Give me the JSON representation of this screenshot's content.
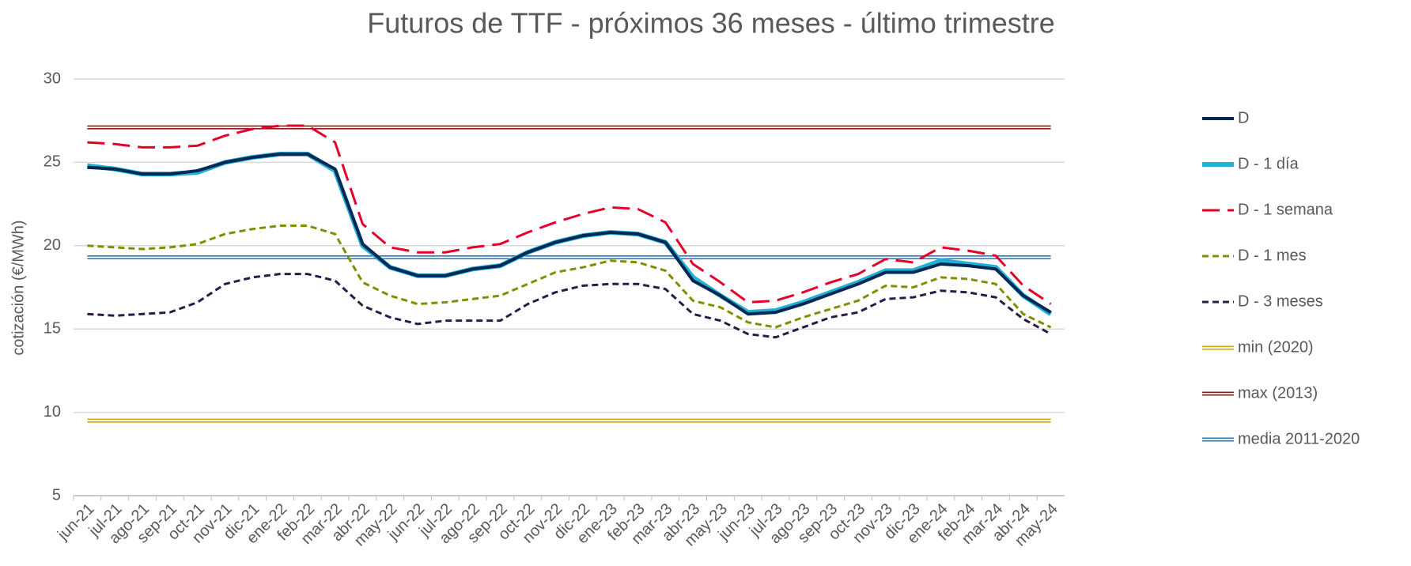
{
  "chart_data": {
    "type": "line",
    "title": "Futuros de TTF - próximos 36 meses - último trimestre",
    "y_label": "cotización (€/MWh)",
    "categories": [
      "jun-21",
      "jul-21",
      "ago-21",
      "sep-21",
      "oct-21",
      "nov-21",
      "dic-21",
      "ene-22",
      "feb-22",
      "mar-22",
      "abr-22",
      "may-22",
      "jun-22",
      "jul-22",
      "ago-22",
      "sep-22",
      "oct-22",
      "nov-22",
      "dic-22",
      "ene-23",
      "feb-23",
      "mar-23",
      "abr-23",
      "may-23",
      "jun-23",
      "jul-23",
      "ago-23",
      "sep-23",
      "oct-23",
      "nov-23",
      "dic-23",
      "ene-24",
      "feb-24",
      "mar-24",
      "abr-24",
      "may-24"
    ],
    "ylim": [
      5,
      30
    ],
    "yticks": [
      5,
      10,
      15,
      20,
      25,
      30
    ],
    "grid": true,
    "legend": "right",
    "series": [
      {
        "name": "min (2020)",
        "color": "#c9a800",
        "style": "double",
        "values": [
          9.5,
          9.5,
          9.5,
          9.5,
          9.5,
          9.5,
          9.5,
          9.5,
          9.5,
          9.5,
          9.5,
          9.5,
          9.5,
          9.5,
          9.5,
          9.5,
          9.5,
          9.5,
          9.5,
          9.5,
          9.5,
          9.5,
          9.5,
          9.5,
          9.5,
          9.5,
          9.5,
          9.5,
          9.5,
          9.5,
          9.5,
          9.5,
          9.5,
          9.5,
          9.5,
          9.5
        ]
      },
      {
        "name": "max (2013)",
        "color": "#8b1a1a",
        "style": "double",
        "values": [
          27.1,
          27.1,
          27.1,
          27.1,
          27.1,
          27.1,
          27.1,
          27.1,
          27.1,
          27.1,
          27.1,
          27.1,
          27.1,
          27.1,
          27.1,
          27.1,
          27.1,
          27.1,
          27.1,
          27.1,
          27.1,
          27.1,
          27.1,
          27.1,
          27.1,
          27.1,
          27.1,
          27.1,
          27.1,
          27.1,
          27.1,
          27.1,
          27.1,
          27.1,
          27.1,
          27.1
        ]
      },
      {
        "name": "media 2011-2020",
        "color": "#2e75b6",
        "style": "double",
        "values": [
          19.3,
          19.3,
          19.3,
          19.3,
          19.3,
          19.3,
          19.3,
          19.3,
          19.3,
          19.3,
          19.3,
          19.3,
          19.3,
          19.3,
          19.3,
          19.3,
          19.3,
          19.3,
          19.3,
          19.3,
          19.3,
          19.3,
          19.3,
          19.3,
          19.3,
          19.3,
          19.3,
          19.3,
          19.3,
          19.3,
          19.3,
          19.3,
          19.3,
          19.3,
          19.3,
          19.3
        ]
      },
      {
        "name": "D - 3 meses",
        "color": "#2e1a47",
        "style": "dot",
        "values": [
          15.9,
          15.8,
          15.9,
          16.0,
          16.6,
          17.7,
          18.1,
          18.3,
          18.3,
          17.9,
          16.4,
          15.7,
          15.3,
          15.5,
          15.5,
          15.5,
          16.5,
          17.2,
          17.6,
          17.7,
          17.7,
          17.4,
          15.9,
          15.5,
          14.7,
          14.5,
          15.1,
          15.7,
          16.0,
          16.8,
          16.9,
          17.3,
          17.2,
          16.9,
          15.6,
          14.7
        ]
      },
      {
        "name": "D - 1 mes",
        "color": "#7f8f00",
        "style": "dot",
        "values": [
          20.0,
          19.9,
          19.8,
          19.9,
          20.1,
          20.7,
          21.0,
          21.2,
          21.2,
          20.7,
          17.8,
          17.0,
          16.5,
          16.6,
          16.8,
          17.0,
          17.7,
          18.4,
          18.7,
          19.1,
          19.0,
          18.5,
          16.7,
          16.3,
          15.4,
          15.1,
          15.7,
          16.2,
          16.7,
          17.6,
          17.5,
          18.1,
          18.0,
          17.7,
          15.9,
          15.1
        ]
      },
      {
        "name": "D - 1 semana",
        "color": "#e4002b",
        "style": "dash",
        "values": [
          26.2,
          26.1,
          25.9,
          25.9,
          26.0,
          26.6,
          27.0,
          27.2,
          27.2,
          26.2,
          21.3,
          19.9,
          19.6,
          19.6,
          19.9,
          20.1,
          20.8,
          21.4,
          21.9,
          22.3,
          22.2,
          21.4,
          18.9,
          17.8,
          16.6,
          16.7,
          17.2,
          17.8,
          18.3,
          19.2,
          19.0,
          19.9,
          19.7,
          19.4,
          17.6,
          16.5
        ]
      },
      {
        "name": "D - 1 día",
        "color": "#1fb2d6",
        "style": "thick",
        "values": [
          24.8,
          24.6,
          24.3,
          24.3,
          24.4,
          25.0,
          25.3,
          25.5,
          25.5,
          24.5,
          20.0,
          18.7,
          18.2,
          18.2,
          18.6,
          18.8,
          19.6,
          20.2,
          20.6,
          20.8,
          20.7,
          20.2,
          18.1,
          17.0,
          16.0,
          16.1,
          16.6,
          17.2,
          17.8,
          18.5,
          18.5,
          19.1,
          18.9,
          18.7,
          17.0,
          15.9
        ]
      },
      {
        "name": "D",
        "color": "#002855",
        "style": "solid",
        "values": [
          24.7,
          24.6,
          24.3,
          24.3,
          24.5,
          25.0,
          25.3,
          25.5,
          25.5,
          24.6,
          20.1,
          18.7,
          18.2,
          18.2,
          18.6,
          18.8,
          19.6,
          20.2,
          20.6,
          20.8,
          20.7,
          20.2,
          17.9,
          17.0,
          15.9,
          16.0,
          16.5,
          17.1,
          17.7,
          18.4,
          18.4,
          18.9,
          18.8,
          18.6,
          17.0,
          16.0
        ]
      }
    ],
    "legend_order": [
      7,
      6,
      5,
      4,
      3,
      0,
      1,
      2
    ]
  }
}
